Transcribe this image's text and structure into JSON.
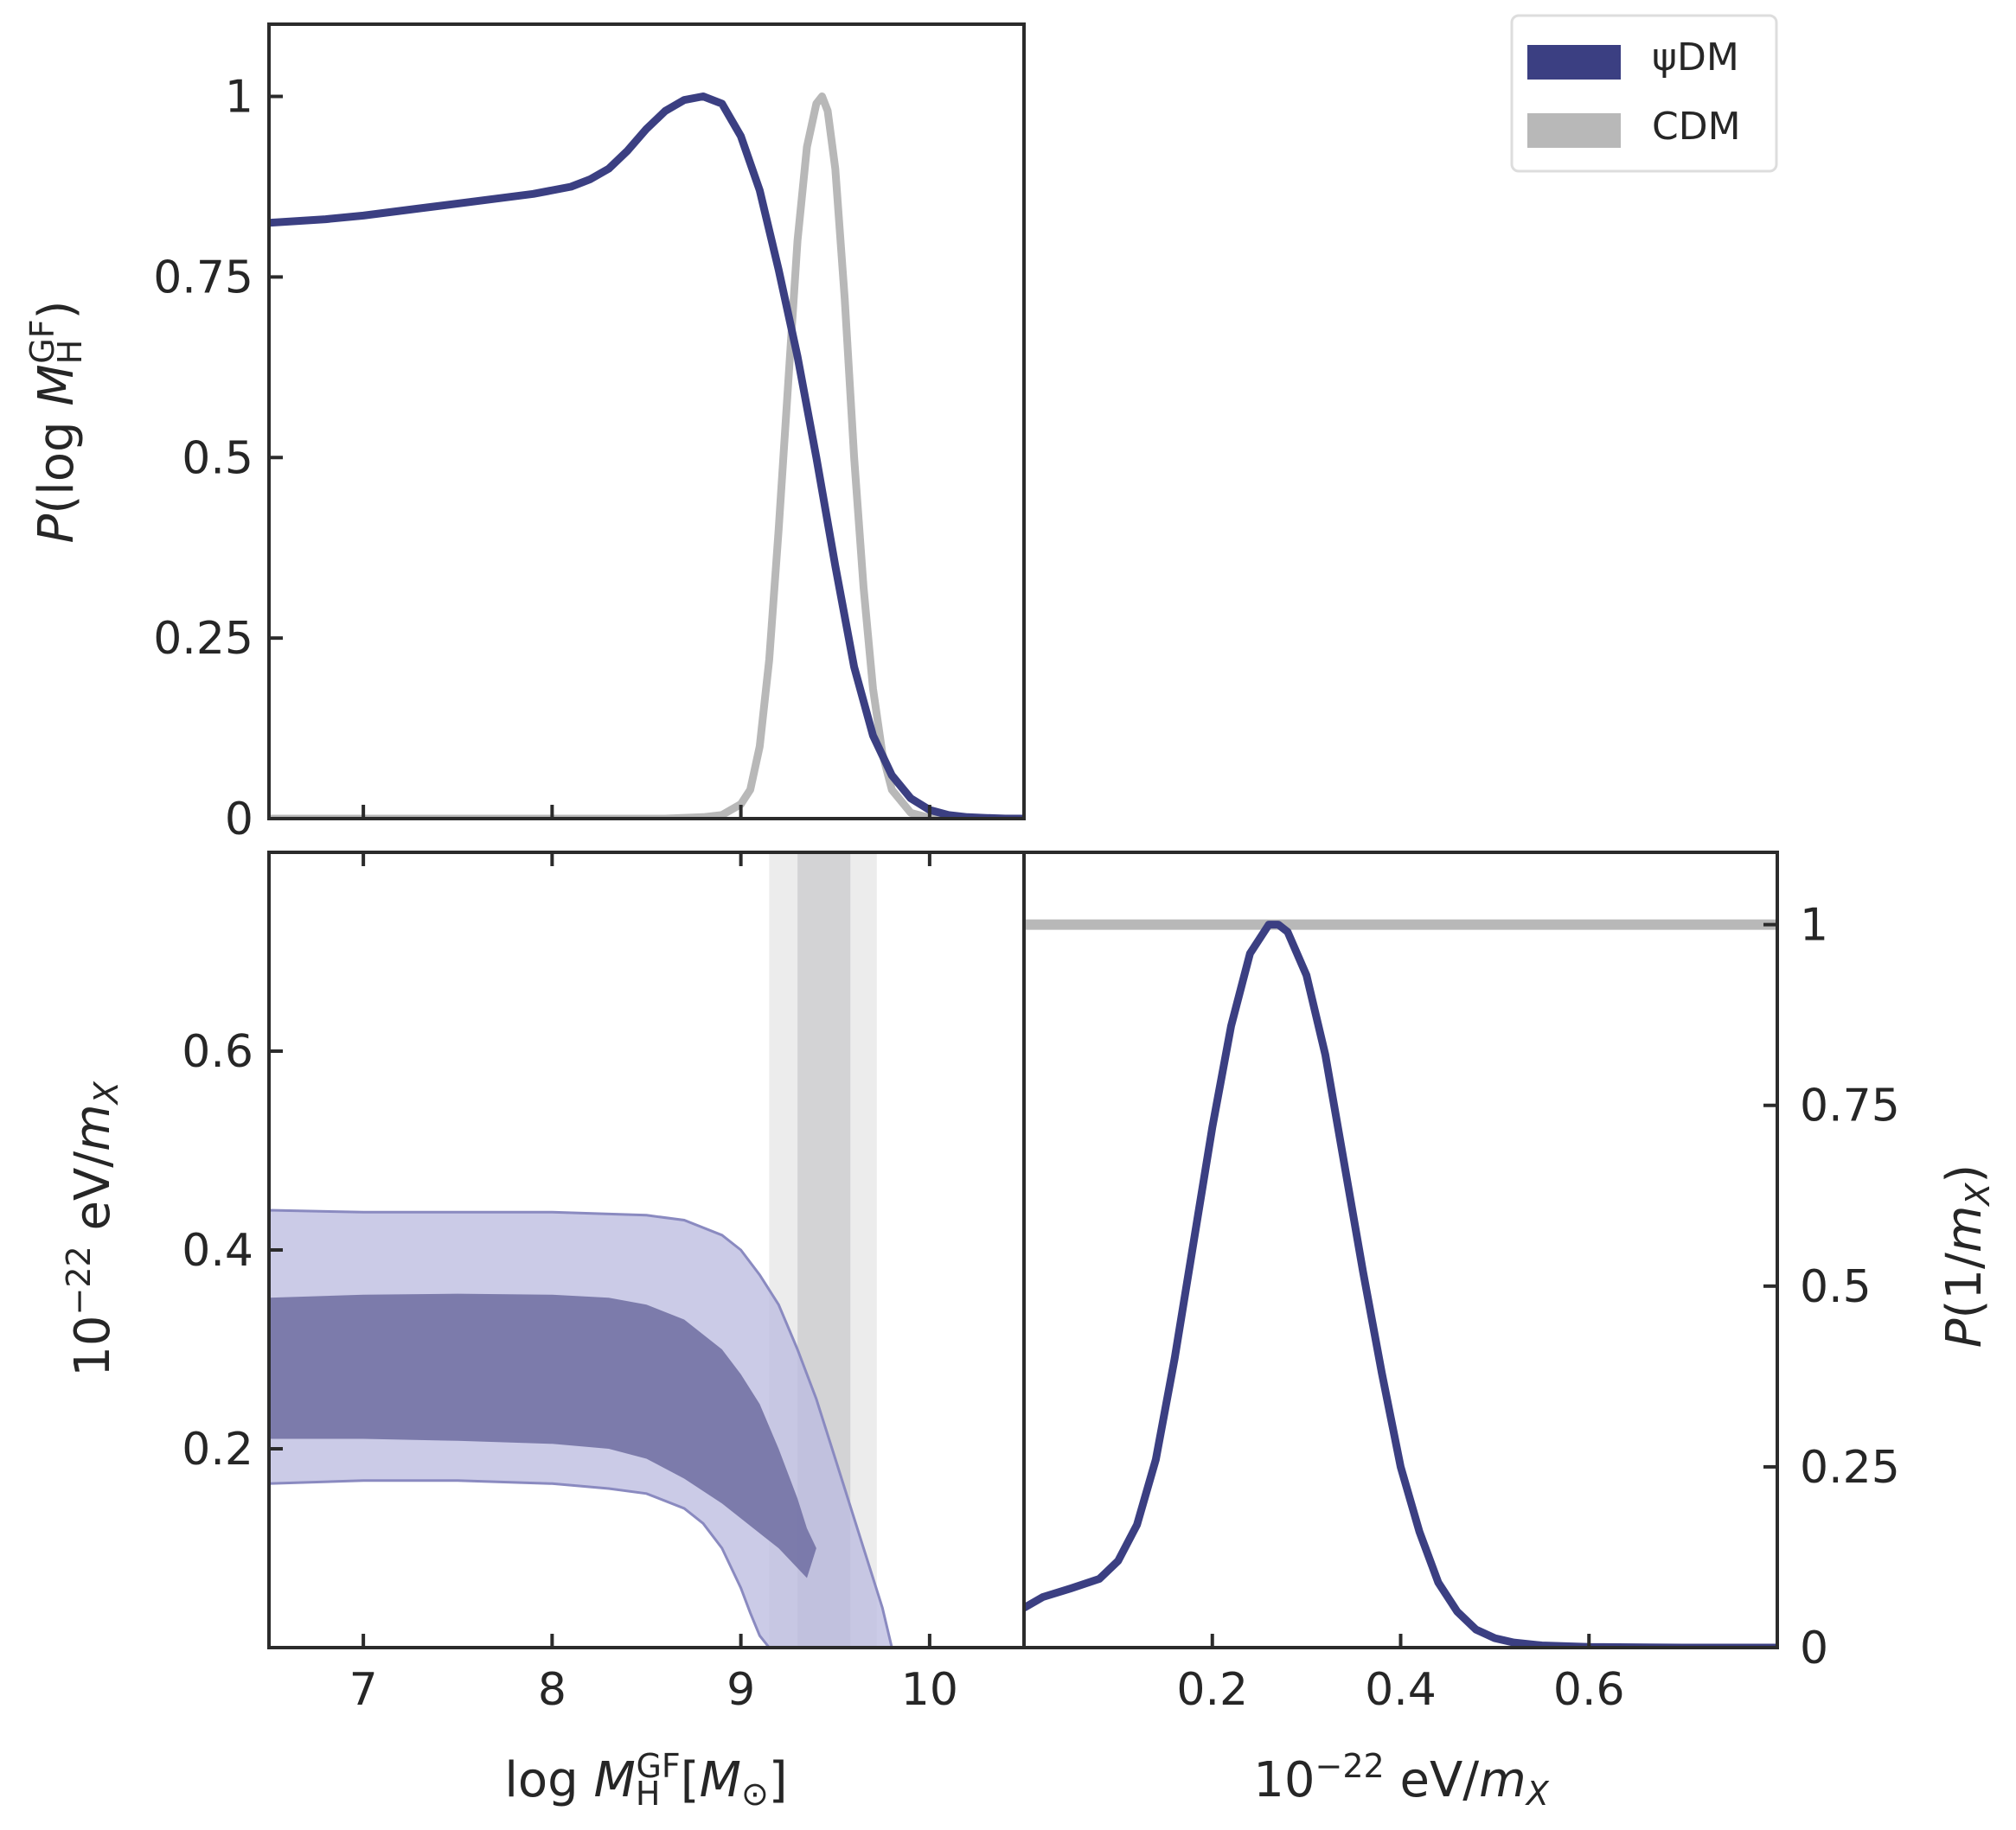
{
  "colors": {
    "psiDM": "#3b3f82",
    "psiDM_inner": "#7574a6",
    "psiDM_outer": "#bdbde0",
    "psiDM_edge": "#8a8ac0",
    "CDM": "#b8b8b8",
    "CDM_inner": "#d3d3d5",
    "CDM_outer": "#ececec",
    "axis": "#2b2b2b",
    "text": "#262626"
  },
  "legend": {
    "entries": [
      "ψDM",
      "CDM"
    ]
  },
  "chart_data": [
    {
      "id": "top-left",
      "type": "line",
      "ylabel": "P(log M_H^GF)",
      "ylabel_parts": {
        "pre": "P",
        "mid": "(log ",
        "var": "M",
        "sub": "H",
        "sup": "GF",
        "post": ")"
      },
      "xlim": [
        6.5,
        10.5
      ],
      "ylim": [
        0,
        1.1
      ],
      "xticks": [
        7,
        8,
        9,
        10
      ],
      "yticks": [
        0,
        0.25,
        0.5,
        0.75,
        1
      ],
      "ytick_labels": [
        "0",
        "0.25",
        "0.5",
        "0.75",
        "1"
      ],
      "series": [
        {
          "name": "ψDM",
          "x": [
            6.5,
            6.8,
            7.0,
            7.3,
            7.6,
            7.9,
            8.1,
            8.2,
            8.3,
            8.4,
            8.5,
            8.6,
            8.7,
            8.8,
            8.9,
            9.0,
            9.1,
            9.2,
            9.3,
            9.4,
            9.5,
            9.6,
            9.7,
            9.8,
            9.9,
            10.0,
            10.1,
            10.2,
            10.3,
            10.4,
            10.5
          ],
          "y": [
            0.825,
            0.83,
            0.835,
            0.845,
            0.855,
            0.865,
            0.875,
            0.885,
            0.9,
            0.925,
            0.955,
            0.98,
            0.995,
            1.0,
            0.99,
            0.945,
            0.87,
            0.76,
            0.64,
            0.5,
            0.35,
            0.21,
            0.115,
            0.06,
            0.028,
            0.012,
            0.005,
            0.002,
            0.001,
            0.0,
            0.0
          ]
        },
        {
          "name": "CDM",
          "x": [
            6.5,
            8.6,
            8.8,
            8.9,
            9.0,
            9.05,
            9.1,
            9.15,
            9.2,
            9.25,
            9.3,
            9.35,
            9.4,
            9.43,
            9.46,
            9.5,
            9.55,
            9.6,
            9.65,
            9.7,
            9.75,
            9.8,
            9.9,
            10.0,
            10.5
          ],
          "y": [
            0.0,
            0.0,
            0.002,
            0.005,
            0.02,
            0.04,
            0.1,
            0.22,
            0.4,
            0.6,
            0.8,
            0.93,
            0.99,
            1.0,
            0.98,
            0.9,
            0.72,
            0.5,
            0.32,
            0.18,
            0.09,
            0.04,
            0.008,
            0.001,
            0.0
          ]
        }
      ]
    },
    {
      "id": "bottom-left",
      "type": "area",
      "xlabel": "log M_H^GF[M_⊙]",
      "xlabel_parts": {
        "pre": "log ",
        "var": "M",
        "sub": "H",
        "sup": "GF",
        "post1": "[",
        "var2": "M",
        "sub2": "⊙",
        "post2": "]"
      },
      "ylabel": "10^-22 eV/m_X",
      "ylabel_parts": {
        "base": "10",
        "sup": "−22",
        "mid": " eV/",
        "var": "m",
        "sub": "X"
      },
      "xlim": [
        6.5,
        10.5
      ],
      "ylim": [
        0.0,
        0.8
      ],
      "xticks": [
        7,
        8,
        9,
        10
      ],
      "xtick_labels": [
        "7",
        "8",
        "9",
        "10"
      ],
      "yticks": [
        0.2,
        0.4,
        0.6
      ],
      "ytick_labels": [
        "0.2",
        "0.4",
        "0.6"
      ],
      "cdm_bands": {
        "outer": [
          9.15,
          9.72
        ],
        "inner": [
          9.3,
          9.58
        ]
      },
      "psiDM_outer_contour": {
        "upper": {
          "x": [
            6.5,
            7.0,
            7.5,
            8.0,
            8.5,
            8.7,
            8.9,
            9.0,
            9.1,
            9.2,
            9.3,
            9.4,
            9.5,
            9.6,
            9.7,
            9.75,
            9.8
          ],
          "y": [
            0.44,
            0.438,
            0.438,
            0.438,
            0.435,
            0.43,
            0.415,
            0.4,
            0.375,
            0.345,
            0.3,
            0.25,
            0.19,
            0.13,
            0.07,
            0.04,
            0.0
          ]
        },
        "lower": {
          "x": [
            6.5,
            7.0,
            7.5,
            8.0,
            8.3,
            8.5,
            8.7,
            8.8,
            8.9,
            9.0,
            9.05,
            9.1,
            9.15
          ],
          "y": [
            0.165,
            0.168,
            0.168,
            0.165,
            0.16,
            0.155,
            0.14,
            0.125,
            0.1,
            0.06,
            0.035,
            0.012,
            0.0
          ]
        }
      },
      "psiDM_inner_contour": {
        "upper": {
          "x": [
            6.5,
            7.0,
            7.5,
            8.0,
            8.3,
            8.5,
            8.7,
            8.9,
            9.0,
            9.1,
            9.2,
            9.3,
            9.35,
            9.4
          ],
          "y": [
            0.352,
            0.355,
            0.356,
            0.355,
            0.352,
            0.345,
            0.33,
            0.3,
            0.275,
            0.245,
            0.2,
            0.15,
            0.12,
            0.1
          ]
        },
        "lower": {
          "x": [
            6.5,
            7.0,
            7.5,
            8.0,
            8.3,
            8.5,
            8.7,
            8.9,
            9.0,
            9.1,
            9.2,
            9.3,
            9.35,
            9.4
          ],
          "y": [
            0.21,
            0.21,
            0.208,
            0.205,
            0.2,
            0.19,
            0.17,
            0.145,
            0.13,
            0.115,
            0.1,
            0.08,
            0.07,
            0.1
          ]
        }
      }
    },
    {
      "id": "bottom-right",
      "type": "line",
      "xlabel": "10^-22 eV/m_X",
      "xlabel_parts": {
        "base": "10",
        "sup": "−22",
        "mid": " eV/",
        "var": "m",
        "sub": "X"
      },
      "ylabel": "P(1/m_X)",
      "ylabel_parts": {
        "pre": "P",
        "mid": "(1/",
        "var": "m",
        "sub": "X",
        "post": ")"
      },
      "xlim": [
        0.0,
        0.8
      ],
      "ylim": [
        0,
        1.1
      ],
      "xticks": [
        0.2,
        0.4,
        0.6
      ],
      "xtick_labels": [
        "0.2",
        "0.4",
        "0.6"
      ],
      "yticks": [
        0,
        0.25,
        0.5,
        0.75,
        1
      ],
      "ytick_labels": [
        "0",
        "0.25",
        "0.5",
        "0.75",
        "1"
      ],
      "series": [
        {
          "name": "ψDM",
          "x": [
            0.0,
            0.02,
            0.05,
            0.08,
            0.1,
            0.12,
            0.14,
            0.16,
            0.18,
            0.2,
            0.22,
            0.24,
            0.26,
            0.27,
            0.28,
            0.3,
            0.32,
            0.34,
            0.36,
            0.38,
            0.4,
            0.42,
            0.44,
            0.46,
            0.48,
            0.5,
            0.52,
            0.55,
            0.6,
            0.7,
            0.8
          ],
          "y": [
            0.055,
            0.07,
            0.082,
            0.095,
            0.12,
            0.17,
            0.26,
            0.4,
            0.56,
            0.72,
            0.86,
            0.96,
            1.0,
            1.0,
            0.99,
            0.93,
            0.82,
            0.67,
            0.52,
            0.38,
            0.25,
            0.16,
            0.09,
            0.05,
            0.025,
            0.013,
            0.007,
            0.003,
            0.001,
            0.0,
            0.0
          ]
        },
        {
          "name": "CDM",
          "x": [
            0.0,
            0.8
          ],
          "y": [
            1.0,
            1.0
          ]
        }
      ]
    }
  ]
}
